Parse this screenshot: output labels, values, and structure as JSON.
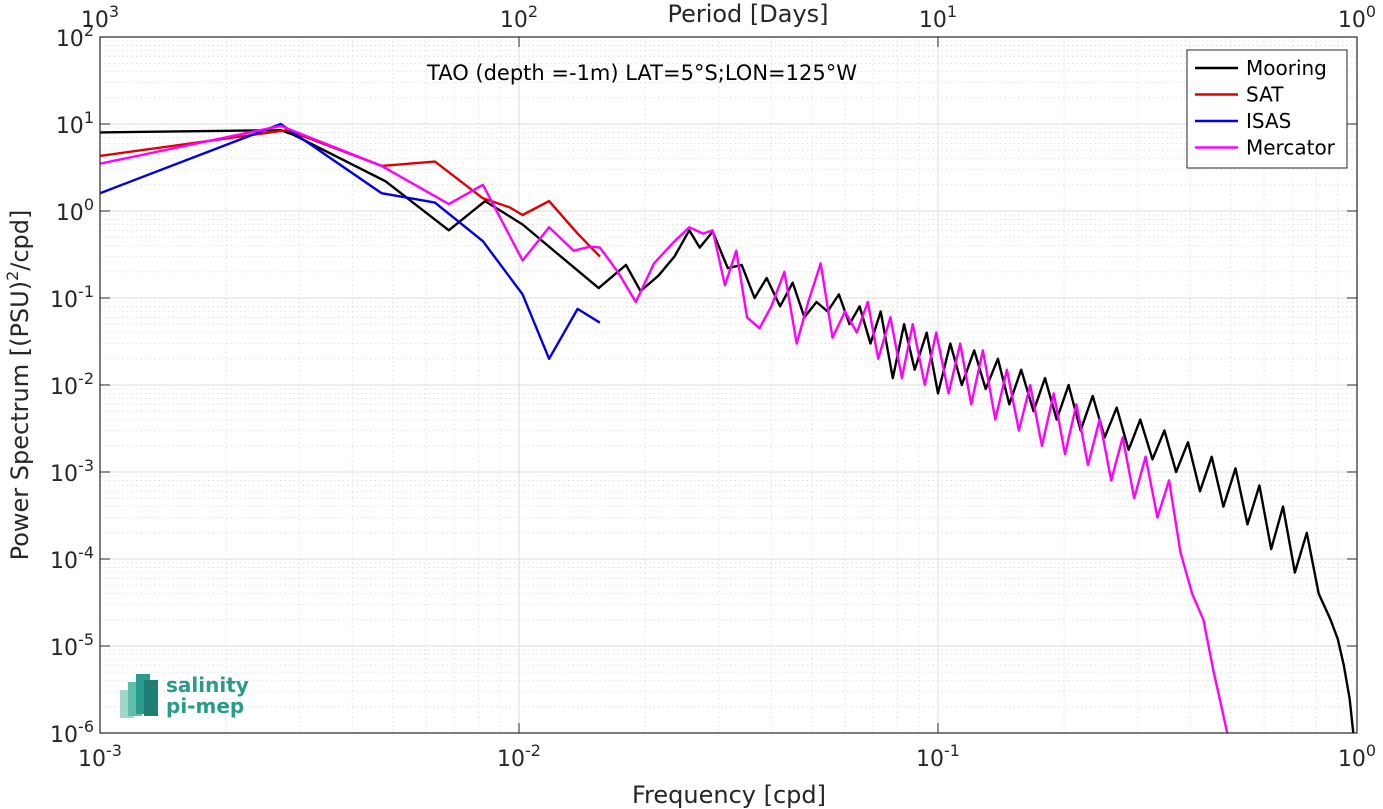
{
  "chart_data": {
    "type": "line",
    "xscale": "log",
    "yscale": "log",
    "xlim": [
      0.001,
      1
    ],
    "ylim": [
      1e-06,
      100
    ],
    "grid": true,
    "minor_grid": true,
    "annotation": "TAO (depth =-1m) LAT=5°S;LON=125°W",
    "xlabel": "Frequency [cpd]",
    "ylabel": "Power Spectrum [(PSU)",
    "ylabel_sup": "2",
    "ylabel_tail": "/cpd]",
    "top_xlabel": "Period [Days]",
    "x_ticks": [
      {
        "value": 0.001,
        "base": "10",
        "exp": "-3"
      },
      {
        "value": 0.01,
        "base": "10",
        "exp": "-2"
      },
      {
        "value": 0.1,
        "base": "10",
        "exp": "-1"
      },
      {
        "value": 1,
        "base": "10",
        "exp": "0"
      }
    ],
    "y_ticks": [
      {
        "value": 1e-06,
        "base": "10",
        "exp": "-6"
      },
      {
        "value": 1e-05,
        "base": "10",
        "exp": "-5"
      },
      {
        "value": 0.0001,
        "base": "10",
        "exp": "-4"
      },
      {
        "value": 0.001,
        "base": "10",
        "exp": "-3"
      },
      {
        "value": 0.01,
        "base": "10",
        "exp": "-2"
      },
      {
        "value": 0.1,
        "base": "10",
        "exp": "-1"
      },
      {
        "value": 1,
        "base": "10",
        "exp": "0"
      },
      {
        "value": 10,
        "base": "10",
        "exp": "1"
      },
      {
        "value": 100,
        "base": "10",
        "exp": "2"
      }
    ],
    "top_ticks": [
      {
        "value": 0.001,
        "base": "10",
        "exp": "3"
      },
      {
        "value": 0.01,
        "base": "10",
        "exp": "2"
      },
      {
        "value": 0.1,
        "base": "10",
        "exp": "1"
      },
      {
        "value": 1,
        "base": "10",
        "exp": "0"
      }
    ],
    "legend_position": "top-right",
    "series": [
      {
        "name": "Mooring",
        "color": "#000000",
        "x": [
          0.001,
          0.0027,
          0.0029,
          0.0048,
          0.0068,
          0.0083,
          0.0102,
          0.0128,
          0.0155,
          0.018,
          0.0195,
          0.0215,
          0.0235,
          0.0255,
          0.027,
          0.029,
          0.0315,
          0.034,
          0.0365,
          0.039,
          0.042,
          0.045,
          0.048,
          0.0513,
          0.0545,
          0.058,
          0.0615,
          0.065,
          0.069,
          0.073,
          0.078,
          0.083,
          0.088,
          0.094,
          0.1,
          0.107,
          0.114,
          0.122,
          0.13,
          0.139,
          0.148,
          0.158,
          0.169,
          0.18,
          0.192,
          0.205,
          0.219,
          0.234,
          0.25,
          0.267,
          0.285,
          0.304,
          0.325,
          0.347,
          0.37,
          0.395,
          0.422,
          0.45,
          0.48,
          0.513,
          0.548,
          0.585,
          0.624,
          0.666,
          0.711,
          0.759,
          0.81,
          0.865,
          0.9,
          0.93,
          0.96,
          0.98
        ],
        "y": [
          8.0,
          8.5,
          7.5,
          2.2,
          0.6,
          1.3,
          0.7,
          0.28,
          0.13,
          0.24,
          0.12,
          0.18,
          0.3,
          0.6,
          0.38,
          0.58,
          0.22,
          0.24,
          0.1,
          0.17,
          0.08,
          0.15,
          0.06,
          0.09,
          0.07,
          0.11,
          0.05,
          0.08,
          0.03,
          0.07,
          0.012,
          0.05,
          0.015,
          0.04,
          0.008,
          0.03,
          0.01,
          0.025,
          0.009,
          0.02,
          0.006,
          0.015,
          0.005,
          0.012,
          0.004,
          0.01,
          0.003,
          0.0075,
          0.0025,
          0.0055,
          0.0018,
          0.004,
          0.0014,
          0.003,
          0.001,
          0.0022,
          0.0006,
          0.0015,
          0.0004,
          0.0011,
          0.00025,
          0.0007,
          0.00013,
          0.0004,
          7e-05,
          0.0002,
          4e-05,
          2e-05,
          1.2e-05,
          6e-06,
          2.5e-06,
          1e-06
        ]
      },
      {
        "name": "SAT",
        "color": "#e00000",
        "x": [
          0.001,
          0.0028,
          0.0047,
          0.0063,
          0.0082,
          0.0095,
          0.0102,
          0.0118,
          0.0138,
          0.0156
        ],
        "y": [
          4.3,
          8.5,
          3.3,
          3.7,
          1.4,
          1.1,
          0.9,
          1.3,
          0.55,
          0.3
        ]
      },
      {
        "name": "ISAS",
        "color": "#0000e0",
        "x": [
          0.001,
          0.0027,
          0.0047,
          0.0063,
          0.0082,
          0.0102,
          0.0118,
          0.0138,
          0.0156
        ],
        "y": [
          1.6,
          10.0,
          1.6,
          1.25,
          0.45,
          0.11,
          0.02,
          0.075,
          0.052
        ]
      },
      {
        "name": "Mercator",
        "color": "#ff00ff",
        "x": [
          0.001,
          0.0027,
          0.0047,
          0.0068,
          0.0082,
          0.0102,
          0.0118,
          0.0135,
          0.0148,
          0.0156,
          0.0172,
          0.019,
          0.021,
          0.0235,
          0.0255,
          0.0275,
          0.029,
          0.031,
          0.033,
          0.035,
          0.0375,
          0.04,
          0.043,
          0.046,
          0.049,
          0.0525,
          0.056,
          0.06,
          0.064,
          0.068,
          0.072,
          0.077,
          0.082,
          0.087,
          0.093,
          0.099,
          0.106,
          0.113,
          0.12,
          0.128,
          0.137,
          0.146,
          0.156,
          0.166,
          0.177,
          0.189,
          0.201,
          0.214,
          0.228,
          0.243,
          0.259,
          0.276,
          0.294,
          0.313,
          0.334,
          0.356,
          0.379,
          0.404,
          0.43,
          0.455,
          0.475,
          0.49
        ],
        "y": [
          3.5,
          9.5,
          3.3,
          1.2,
          2.0,
          0.27,
          0.65,
          0.35,
          0.39,
          0.38,
          0.2,
          0.09,
          0.25,
          0.45,
          0.65,
          0.55,
          0.6,
          0.14,
          0.35,
          0.06,
          0.045,
          0.08,
          0.2,
          0.03,
          0.09,
          0.25,
          0.035,
          0.07,
          0.04,
          0.09,
          0.02,
          0.06,
          0.012,
          0.05,
          0.01,
          0.04,
          0.008,
          0.03,
          0.006,
          0.025,
          0.004,
          0.015,
          0.003,
          0.01,
          0.002,
          0.008,
          0.0016,
          0.006,
          0.0012,
          0.004,
          0.0008,
          0.0025,
          0.0005,
          0.0015,
          0.0003,
          0.0008,
          0.00012,
          4e-05,
          2e-05,
          5e-06,
          2e-06,
          1e-06
        ]
      }
    ]
  },
  "logo": {
    "line1": "salinity",
    "line2": "pi-mep"
  }
}
